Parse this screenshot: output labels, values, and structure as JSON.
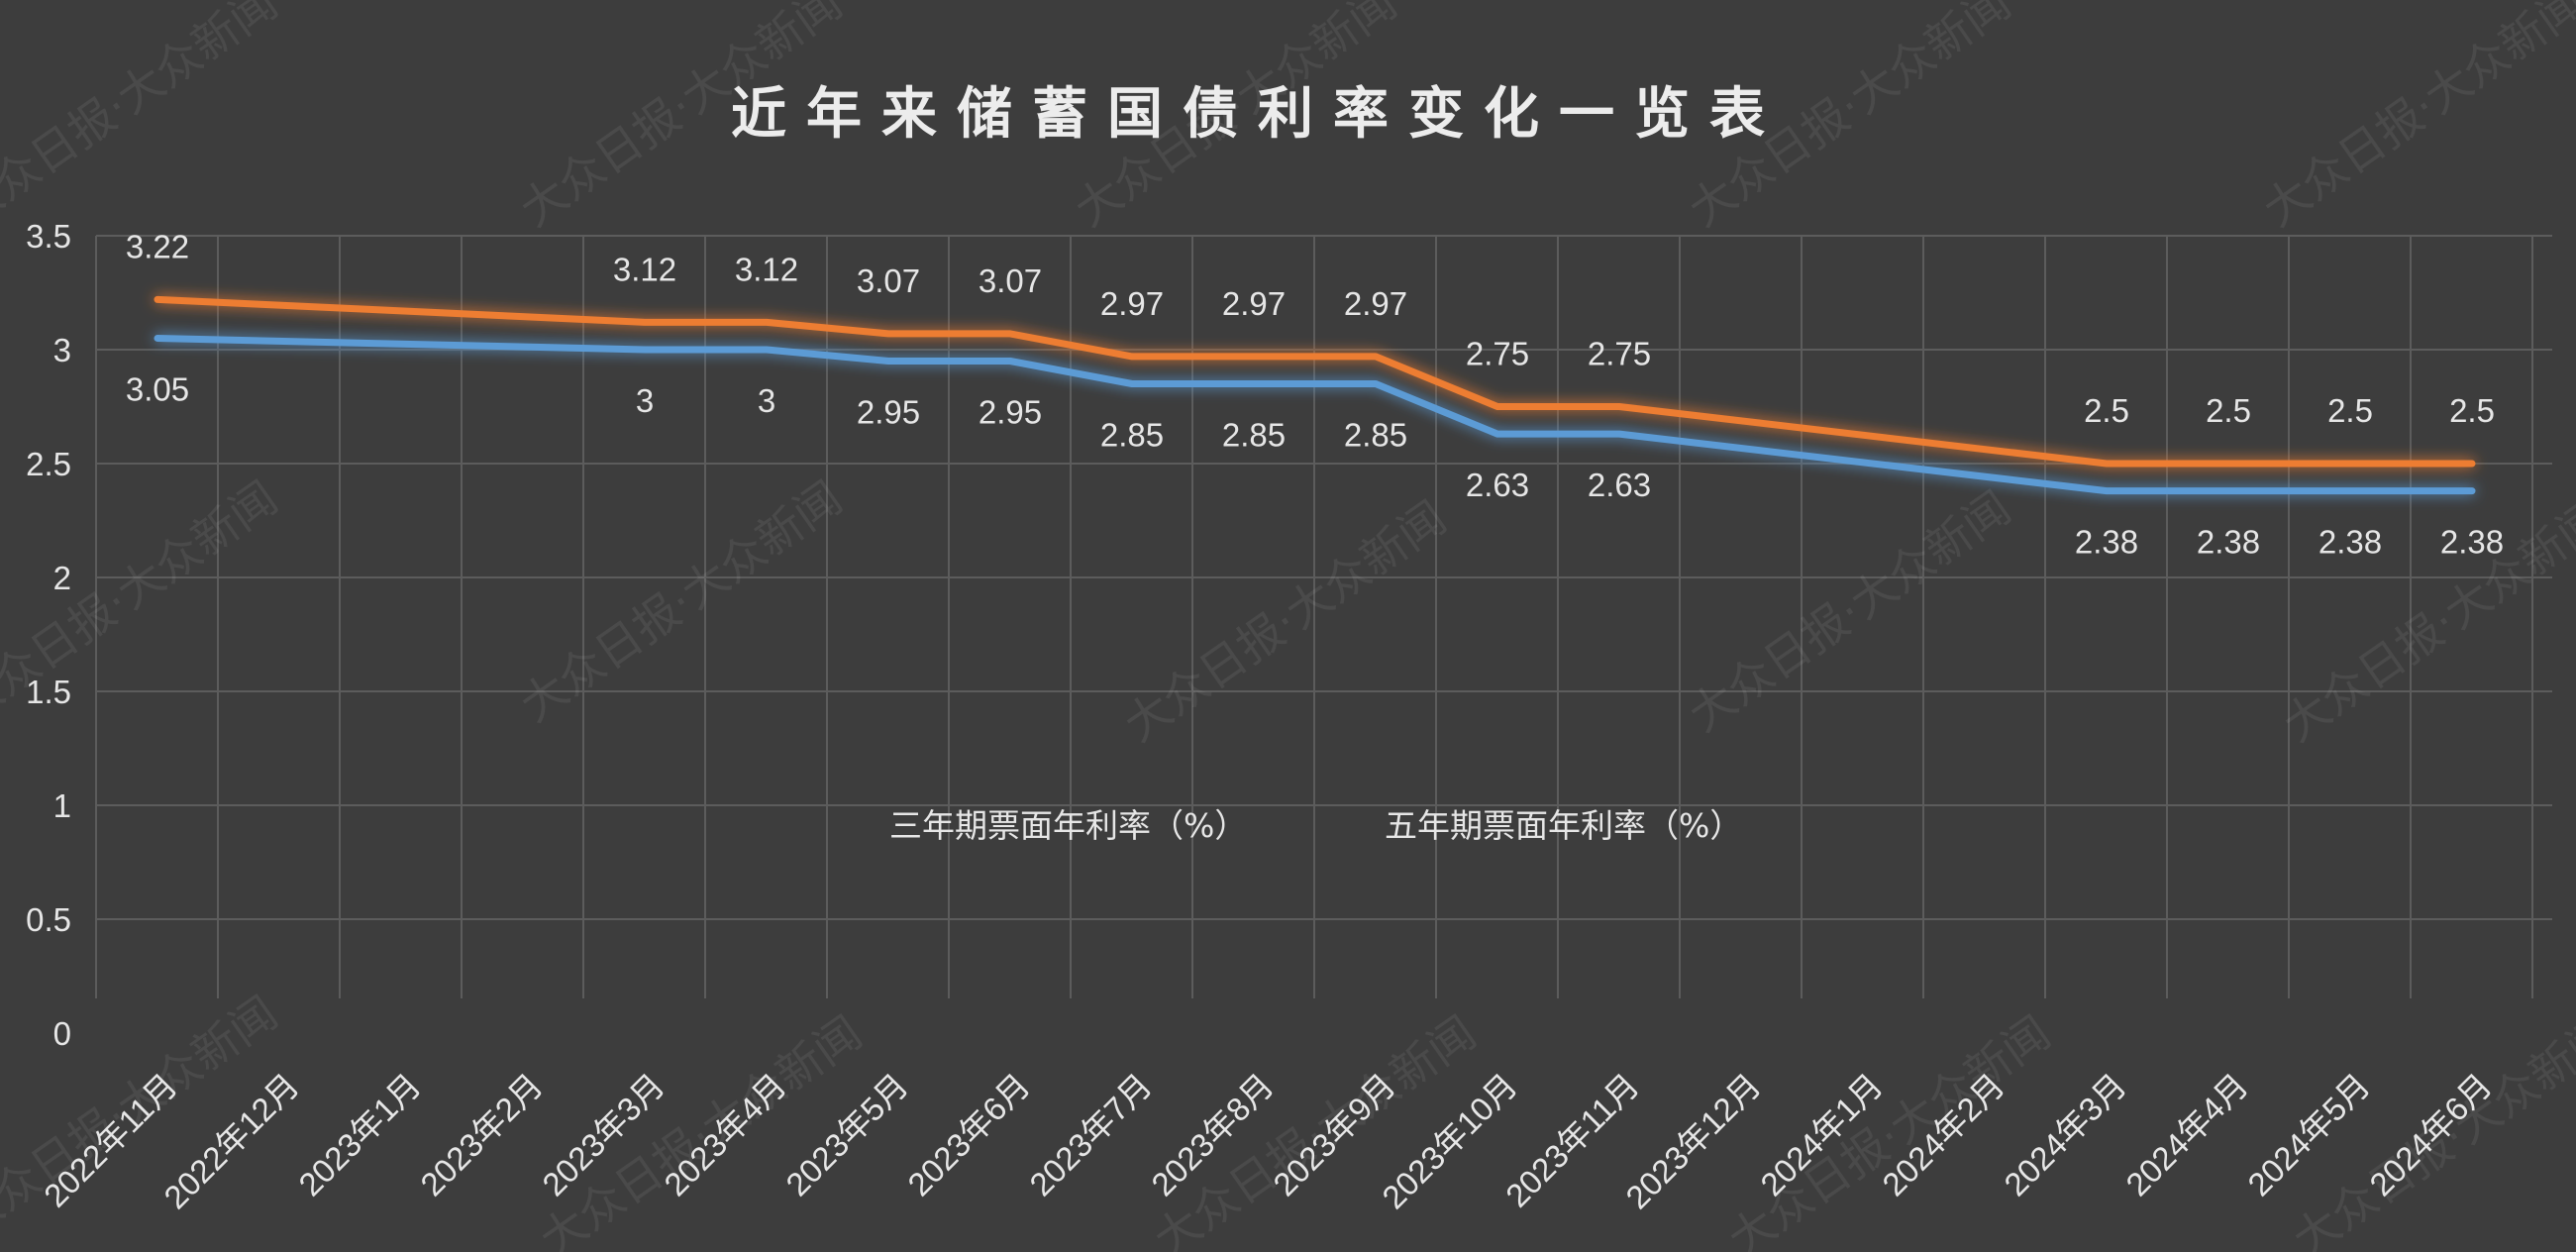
{
  "watermark": "大众日报·大众新闻",
  "colors": {
    "background": "#3d3d3d",
    "grid": "#5c5c5c",
    "text": "#e6e6e6",
    "series_3yr": "#5b9bd5",
    "series_5yr": "#ed7d31"
  },
  "chart_data": {
    "type": "line",
    "title": "近年来储蓄国债利率变化一览表",
    "categories": [
      "2022年11月",
      "2022年12月",
      "2023年1月",
      "2023年2月",
      "2023年3月",
      "2023年4月",
      "2023年5月",
      "2023年6月",
      "2023年7月",
      "2023年8月",
      "2023年9月",
      "2023年10月",
      "2023年11月",
      "2023年12月",
      "2024年1月",
      "2024年2月",
      "2024年3月",
      "2024年4月",
      "2024年5月",
      "2024年6月"
    ],
    "series": [
      {
        "name": "三年期票面年利率（%）",
        "color": "#5b9bd5",
        "values": [
          3.05,
          null,
          null,
          null,
          3,
          3,
          2.95,
          2.95,
          2.85,
          2.85,
          2.85,
          2.63,
          2.63,
          null,
          null,
          null,
          2.38,
          2.38,
          2.38,
          2.38
        ],
        "label_position": "below"
      },
      {
        "name": "五年期票面年利率（%）",
        "color": "#ed7d31",
        "values": [
          3.22,
          null,
          null,
          null,
          3.12,
          3.12,
          3.07,
          3.07,
          2.97,
          2.97,
          2.97,
          2.75,
          2.75,
          null,
          null,
          null,
          2.5,
          2.5,
          2.5,
          2.5
        ],
        "label_position": "above"
      }
    ],
    "ylim": [
      0,
      3.5
    ],
    "y_ticks": [
      "0",
      "0.5",
      "1",
      "1.5",
      "2",
      "2.5",
      "3",
      "3.5"
    ],
    "grid": true,
    "legend_position": "inside-center",
    "xlabel": "",
    "ylabel": ""
  }
}
